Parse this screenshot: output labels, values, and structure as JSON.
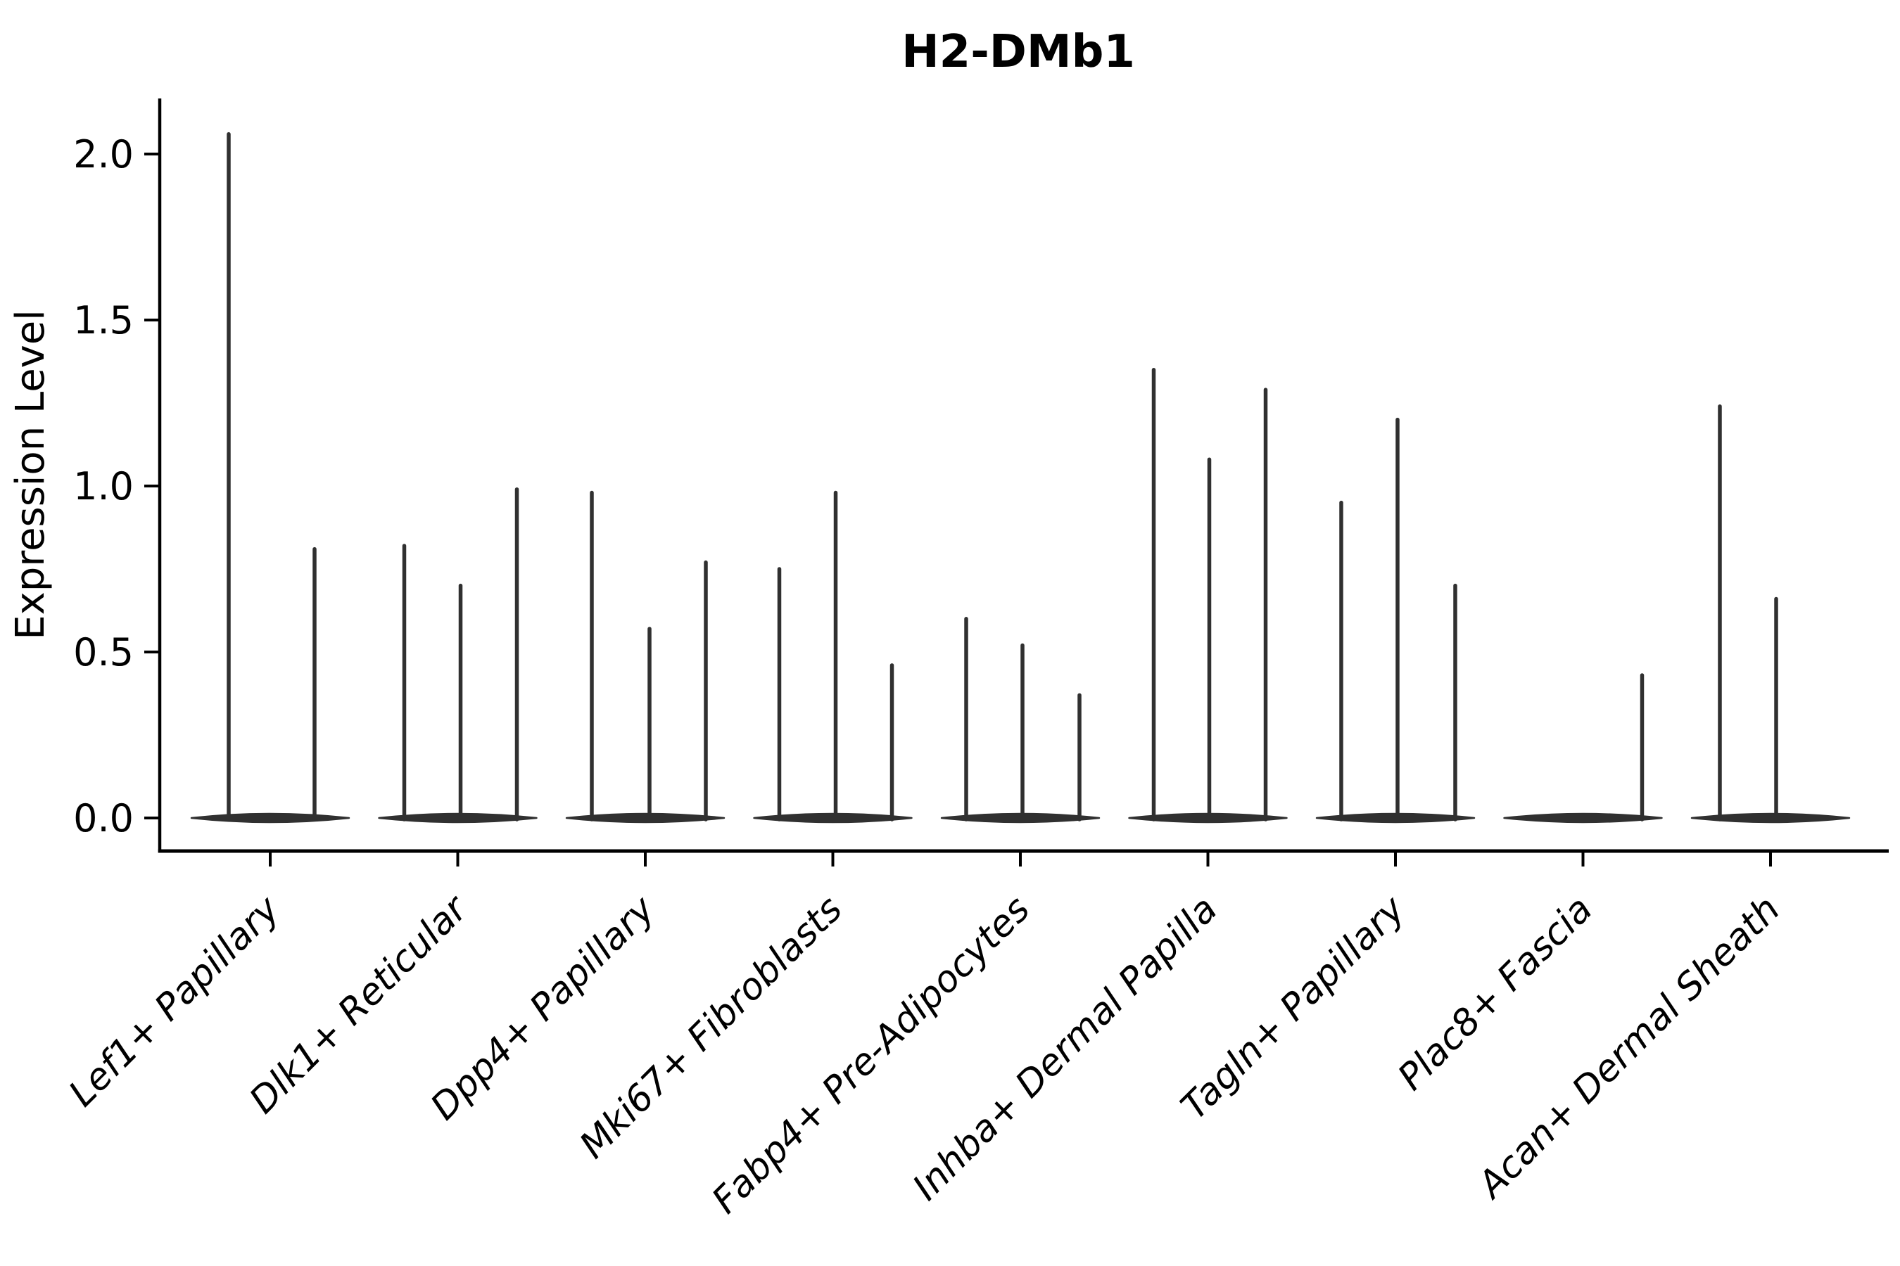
{
  "chart_data": {
    "type": "violin",
    "title": "H2-DMb1",
    "xlabel": "",
    "ylabel": "Expression Level",
    "ylim": [
      0,
      2.17
    ],
    "grid": false,
    "legend_position": "none",
    "background_color": "#ffffff",
    "violin_color": "#303030",
    "axis_color": "#000000",
    "ytick_labels": [
      "0.0",
      "0.5",
      "1.0",
      "1.5",
      "2.0"
    ],
    "ytick_values": [
      0.0,
      0.5,
      1.0,
      1.5,
      2.0
    ],
    "baseline_value": 0.0,
    "categories": [
      {
        "label": "Lef1+ Papillary",
        "violins": [
          {
            "offset": -59,
            "max": 2.06
          },
          {
            "offset": 63,
            "max": 0.81
          }
        ]
      },
      {
        "label": "Dlk1+ Reticular",
        "violins": [
          {
            "offset": -76,
            "max": 0.82
          },
          {
            "offset": 4,
            "max": 0.7
          },
          {
            "offset": 84,
            "max": 0.99
          }
        ]
      },
      {
        "label": "Dpp4+ Papillary",
        "violins": [
          {
            "offset": -76,
            "max": 0.98
          },
          {
            "offset": 6,
            "max": 0.57
          },
          {
            "offset": 86,
            "max": 0.77
          }
        ]
      },
      {
        "label": "Mki67+ Fibroblasts",
        "violins": [
          {
            "offset": -76,
            "max": 0.75
          },
          {
            "offset": 4,
            "max": 0.98
          },
          {
            "offset": 84,
            "max": 0.46
          }
        ]
      },
      {
        "label": "Fabp4+ Pre-Adipocytes",
        "violins": [
          {
            "offset": -77,
            "max": 0.6
          },
          {
            "offset": 3,
            "max": 0.52
          },
          {
            "offset": 84,
            "max": 0.37
          }
        ]
      },
      {
        "label": "Inhba+ Dermal Papilla",
        "violins": [
          {
            "offset": -77,
            "max": 1.35
          },
          {
            "offset": 2,
            "max": 1.08
          },
          {
            "offset": 82,
            "max": 1.29
          }
        ]
      },
      {
        "label": "Tagln+ Papillary",
        "violins": [
          {
            "offset": -77,
            "max": 0.95
          },
          {
            "offset": 3,
            "max": 1.2
          },
          {
            "offset": 85,
            "max": 0.7
          }
        ]
      },
      {
        "label": "Plac8+ Fascia",
        "violins": [
          {
            "offset": 84,
            "max": 0.43
          }
        ]
      },
      {
        "label": "Acan+ Dermal Sheath",
        "violins": [
          {
            "offset": -72,
            "max": 1.24
          },
          {
            "offset": 8,
            "max": 0.66
          }
        ]
      }
    ]
  }
}
